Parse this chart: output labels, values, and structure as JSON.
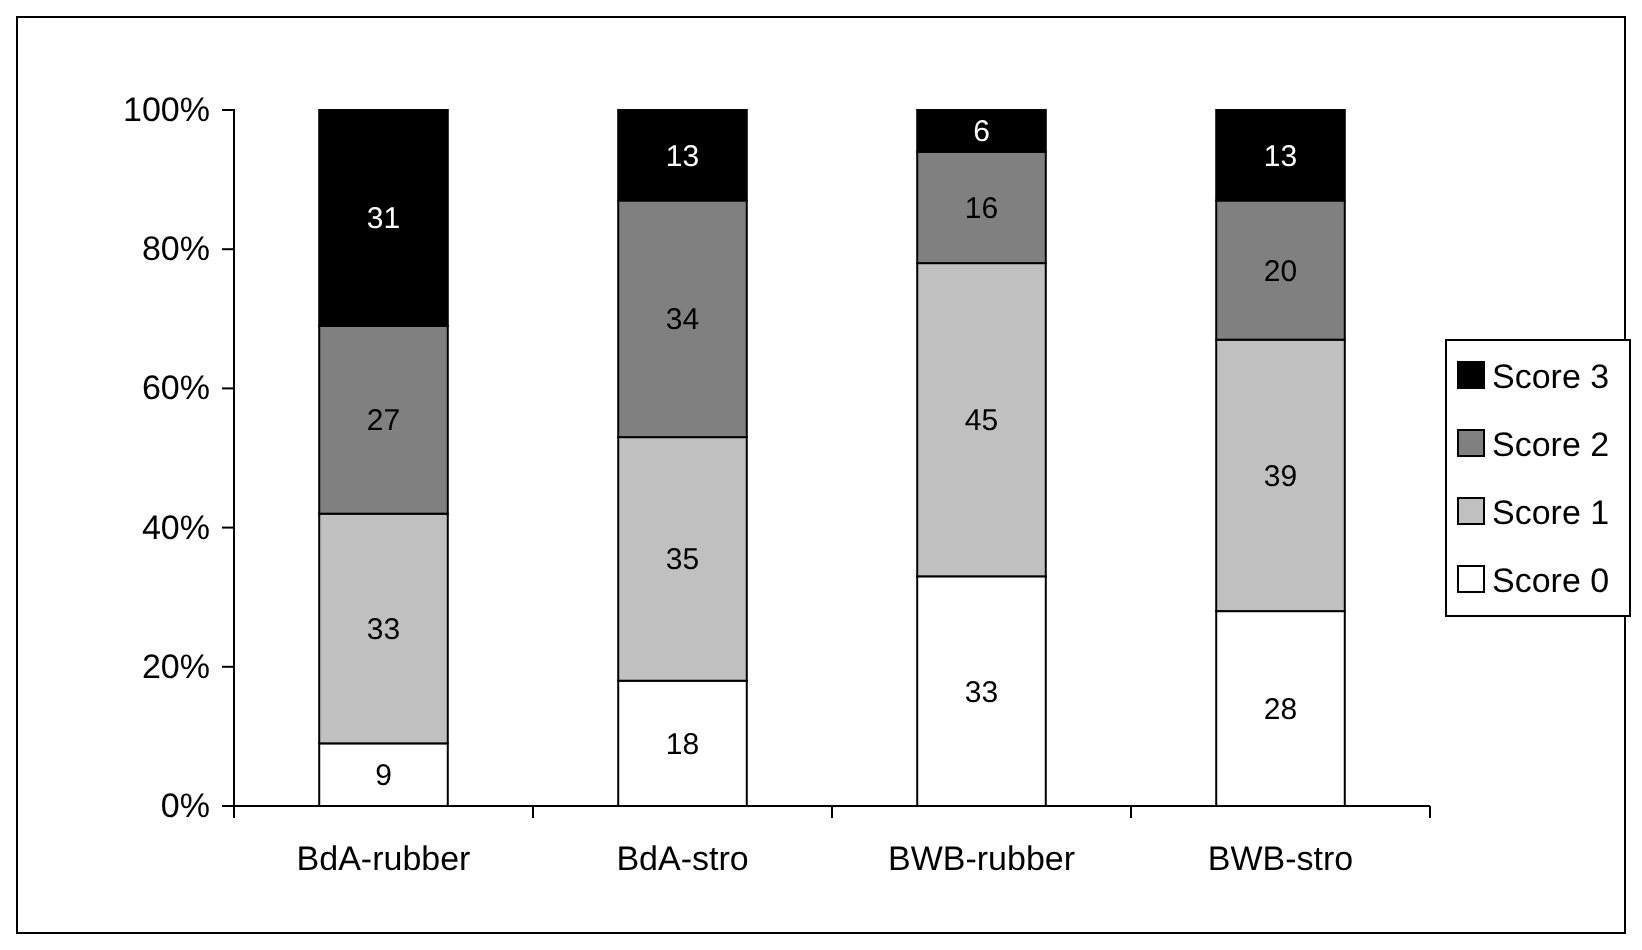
{
  "chart_data": {
    "type": "bar",
    "stacked": true,
    "categories": [
      "BdA-rubber",
      "BdA-stro",
      "BWB-rubber",
      "BWB-stro"
    ],
    "series": [
      {
        "name": "Score 0",
        "color": "#ffffff",
        "values": [
          9,
          18,
          33,
          28
        ]
      },
      {
        "name": "Score 1",
        "color": "#c0c0c0",
        "values": [
          33,
          35,
          45,
          39
        ]
      },
      {
        "name": "Score 2",
        "color": "#808080",
        "values": [
          27,
          34,
          16,
          20
        ]
      },
      {
        "name": "Score 3",
        "color": "#000000",
        "values": [
          31,
          13,
          6,
          13
        ]
      }
    ],
    "ylim": [
      0,
      100
    ],
    "yticks": [
      {
        "value": 0,
        "label": "0%"
      },
      {
        "value": 20,
        "label": "20%"
      },
      {
        "value": 40,
        "label": "40%"
      },
      {
        "value": 60,
        "label": "60%"
      },
      {
        "value": 80,
        "label": "80%"
      },
      {
        "value": 100,
        "label": "100%"
      }
    ],
    "data_labels": true,
    "grid": false,
    "legend": "right"
  }
}
